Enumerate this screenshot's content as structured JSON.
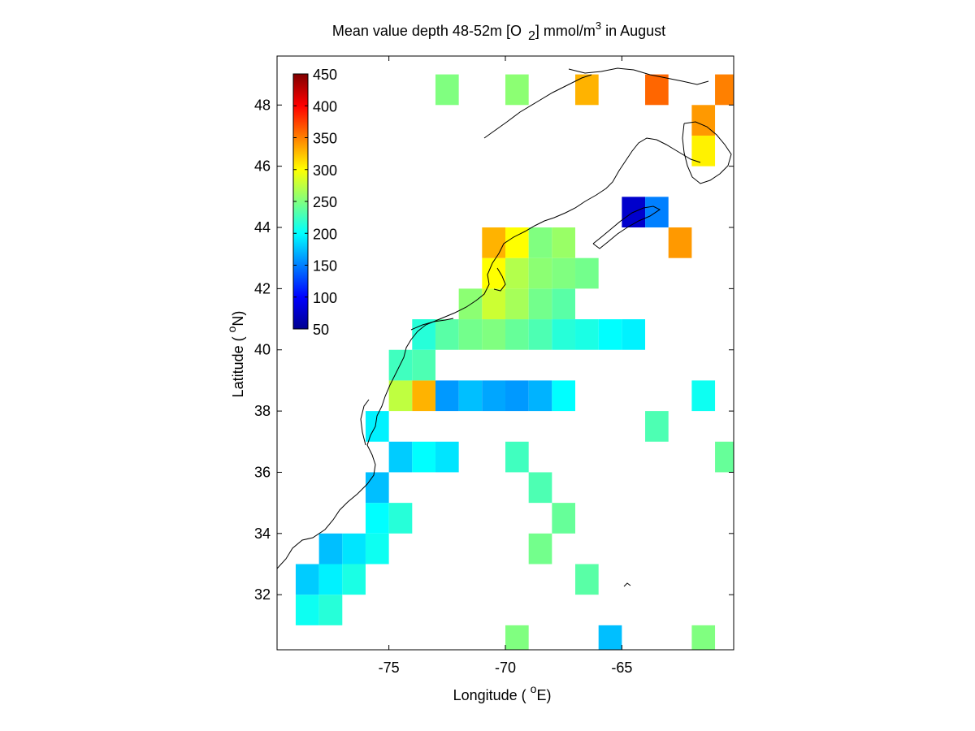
{
  "chart_data": {
    "type": "heatmap",
    "title": "Mean value depth 48-52m [O 2] mmol/m3 in August",
    "title_parts": {
      "main": "Mean value depth 48-52m [O",
      "sub": "2",
      "mid": "] mmol/m",
      "sup": "3",
      "end": " in August"
    },
    "xlabel": "Longitude ( oE)",
    "xlabel_parts": {
      "pre": "Longitude ( ",
      "sup": "o",
      "post": "E)"
    },
    "ylabel": "Latitude ( oN)",
    "ylabel_parts": {
      "pre": "Latitude ( ",
      "sup": "o",
      "post": "N)"
    },
    "xlim": [
      -79.8,
      -60.2
    ],
    "ylim": [
      30.2,
      49.6
    ],
    "xticks": [
      -75,
      -70,
      -65
    ],
    "yticks": [
      32,
      34,
      36,
      38,
      40,
      42,
      44,
      46,
      48
    ],
    "grid": false,
    "colorbar": {
      "placement": "upper-left inside axes",
      "colormap": "jet",
      "clim": [
        50,
        450
      ],
      "ticks": [
        50,
        100,
        150,
        200,
        250,
        300,
        350,
        400,
        450
      ]
    },
    "cell_size_deg": 1,
    "cells_note": "Each cell is [lon, lat, value_mmol_m3] centered at 1-degree grid; values estimated from colors",
    "cells": [
      [
        -78.5,
        31.5,
        205
      ],
      [
        -77.5,
        31.5,
        215
      ],
      [
        -78.5,
        32.5,
        180
      ],
      [
        -77.5,
        32.5,
        195
      ],
      [
        -76.5,
        32.5,
        210
      ],
      [
        -77.5,
        33.5,
        175
      ],
      [
        -76.5,
        33.5,
        190
      ],
      [
        -75.5,
        33.5,
        205
      ],
      [
        -75.5,
        34.5,
        200
      ],
      [
        -74.5,
        34.5,
        215
      ],
      [
        -75.5,
        35.5,
        175
      ],
      [
        -74.5,
        36.5,
        180
      ],
      [
        -73.5,
        36.5,
        200
      ],
      [
        -72.5,
        36.5,
        190
      ],
      [
        -75.5,
        37.5,
        195
      ],
      [
        -74.5,
        38.5,
        275
      ],
      [
        -73.5,
        38.5,
        330
      ],
      [
        -74.5,
        39.5,
        225
      ],
      [
        -73.5,
        39.5,
        230
      ],
      [
        -72.5,
        38.5,
        160
      ],
      [
        -71.5,
        38.5,
        175
      ],
      [
        -70.5,
        38.5,
        165
      ],
      [
        -69.5,
        38.5,
        160
      ],
      [
        -68.5,
        38.5,
        170
      ],
      [
        -67.5,
        38.5,
        200
      ],
      [
        -73.5,
        40.5,
        215
      ],
      [
        -72.5,
        40.5,
        235
      ],
      [
        -71.5,
        40.5,
        245
      ],
      [
        -70.5,
        40.5,
        250
      ],
      [
        -69.5,
        40.5,
        240
      ],
      [
        -68.5,
        40.5,
        230
      ],
      [
        -67.5,
        40.5,
        215
      ],
      [
        -66.5,
        40.5,
        210
      ],
      [
        -65.5,
        40.5,
        200
      ],
      [
        -64.5,
        40.5,
        195
      ],
      [
        -71.5,
        41.5,
        255
      ],
      [
        -70.5,
        41.5,
        280
      ],
      [
        -69.5,
        41.5,
        265
      ],
      [
        -68.5,
        41.5,
        245
      ],
      [
        -67.5,
        41.5,
        235
      ],
      [
        -70.5,
        42.5,
        300
      ],
      [
        -69.5,
        42.5,
        270
      ],
      [
        -68.5,
        42.5,
        255
      ],
      [
        -67.5,
        42.5,
        250
      ],
      [
        -66.5,
        42.5,
        245
      ],
      [
        -70.5,
        43.5,
        330
      ],
      [
        -69.5,
        43.5,
        300
      ],
      [
        -68.5,
        43.5,
        250
      ],
      [
        -67.5,
        43.5,
        260
      ],
      [
        -64.5,
        44.5,
        80
      ],
      [
        -63.5,
        44.5,
        150
      ],
      [
        -62.5,
        43.5,
        340
      ],
      [
        -61.5,
        46.5,
        305
      ],
      [
        -61.5,
        47.5,
        340
      ],
      [
        -60.5,
        48.5,
        350
      ],
      [
        -66.5,
        48.5,
        330
      ],
      [
        -63.5,
        48.5,
        360
      ],
      [
        -69.5,
        48.5,
        255
      ],
      [
        -72.5,
        48.5,
        250
      ],
      [
        -69.5,
        36.5,
        225
      ],
      [
        -68.5,
        35.5,
        230
      ],
      [
        -67.5,
        34.5,
        240
      ],
      [
        -68.5,
        33.5,
        245
      ],
      [
        -66.5,
        32.5,
        235
      ],
      [
        -69.5,
        30.5,
        250
      ],
      [
        -65.5,
        30.5,
        175
      ],
      [
        -61.5,
        30.5,
        250
      ],
      [
        -63.5,
        37.5,
        230
      ],
      [
        -61.5,
        38.5,
        205
      ],
      [
        -60.5,
        36.5,
        240
      ]
    ]
  }
}
